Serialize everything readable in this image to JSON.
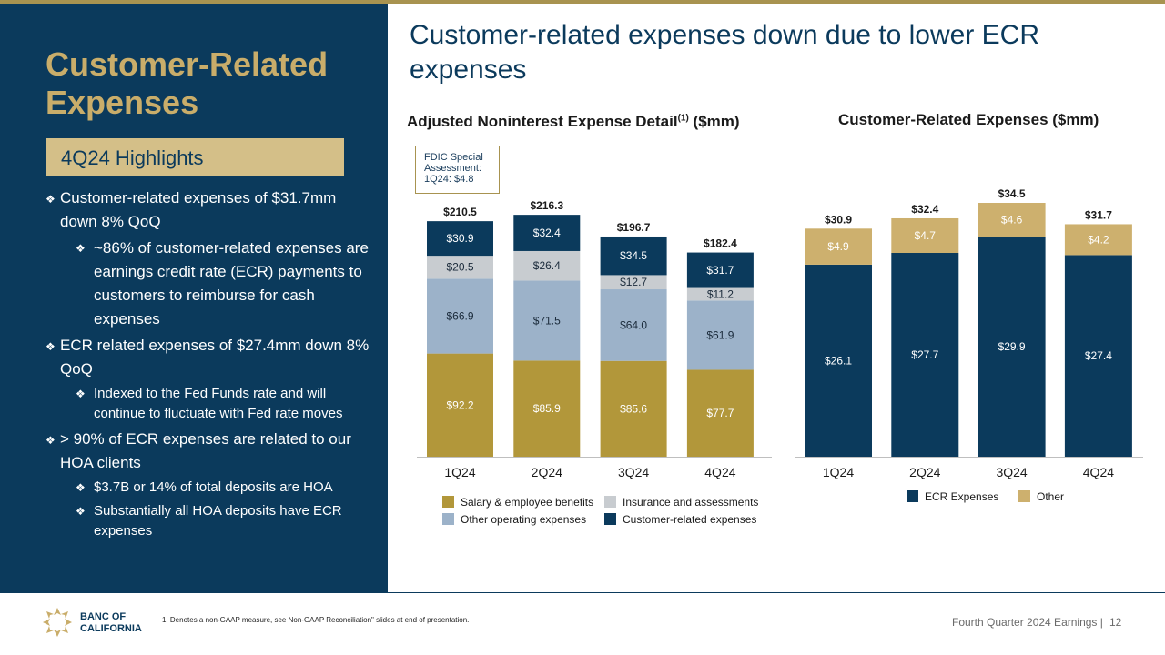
{
  "left": {
    "title": "Customer-Related Expenses",
    "highlight_label": "4Q24 Highlights",
    "bullets": [
      {
        "level": 1,
        "text": "Customer-related expenses of $31.7mm down 8% QoQ"
      },
      {
        "level": 2,
        "text": "~86% of customer-related expenses are earnings credit rate (ECR) payments to customers to reimburse for cash expenses"
      },
      {
        "level": 1,
        "text": "ECR related expenses of $27.4mm down 8% QoQ"
      },
      {
        "level": 3,
        "text": "Indexed to the Fed Funds rate and will continue to fluctuate with Fed rate moves"
      },
      {
        "level": 1,
        "text": "> 90% of ECR expenses are related to our HOA clients"
      },
      {
        "level": 3,
        "text": "$3.7B or 14% of total deposits are HOA"
      },
      {
        "level": 3,
        "text": "Substantially all HOA deposits have ECR expenses"
      }
    ]
  },
  "main_title": "Customer-related expenses down due to lower ECR expenses",
  "chart1_title": "Adjusted Noninterest Expense Detail",
  "chart1_title_sup": "(1)",
  "chart1_title_unit": " ($mm)",
  "chart2_title": "Customer-Related Expenses ($mm)",
  "fdic_note": "FDIC Special Assessment: 1Q24: $4.8",
  "colors": {
    "navy": "#0b3a5c",
    "gold": "#b2973a",
    "light_blue": "#9cb2c9",
    "light_gray": "#c8ccd0",
    "tan": "#cdb06e"
  },
  "chart_data": [
    {
      "type": "bar",
      "stacked": true,
      "title": "Adjusted Noninterest Expense Detail(1) ($mm)",
      "categories": [
        "1Q24",
        "2Q24",
        "3Q24",
        "4Q24"
      ],
      "series": [
        {
          "name": "Salary & employee benefits",
          "values": [
            92.2,
            85.9,
            85.6,
            77.7
          ],
          "labels": [
            "$92.2",
            "$85.9",
            "$85.6",
            "$77.7"
          ],
          "color": "#b2973a",
          "label_color": "#ffffff"
        },
        {
          "name": "Other operating expenses",
          "values": [
            66.9,
            71.5,
            64.0,
            61.9
          ],
          "labels": [
            "$66.9",
            "$71.5",
            "$64.0",
            "$61.9"
          ],
          "color": "#9cb2c9",
          "label_color": "#1a2a3a"
        },
        {
          "name": "Insurance and assessments",
          "values": [
            20.5,
            26.4,
            12.7,
            11.2
          ],
          "labels": [
            "$20.5",
            "$26.4",
            "$12.7",
            "$11.2"
          ],
          "color": "#c8ccd0",
          "label_color": "#1a2a3a"
        },
        {
          "name": "Customer-related expenses",
          "values": [
            30.9,
            32.4,
            34.5,
            31.7
          ],
          "labels": [
            "$30.9",
            "$32.4",
            "$34.5",
            "$31.7"
          ],
          "color": "#0b3a5c",
          "label_color": "#ffffff"
        }
      ],
      "totals": [
        "$210.5",
        "$216.3",
        "$196.7",
        "$182.4"
      ],
      "legend_order": [
        "Salary & employee benefits",
        "Insurance and assessments",
        "Other operating expenses",
        "Customer-related expenses"
      ],
      "ylim": [
        0,
        216.3
      ]
    },
    {
      "type": "bar",
      "stacked": true,
      "title": "Customer-Related Expenses ($mm)",
      "categories": [
        "1Q24",
        "2Q24",
        "3Q24",
        "4Q24"
      ],
      "series": [
        {
          "name": "ECR Expenses",
          "values": [
            26.1,
            27.7,
            29.9,
            27.4
          ],
          "labels": [
            "$26.1",
            "$27.7",
            "$29.9",
            "$27.4"
          ],
          "color": "#0b3a5c",
          "label_color": "#ffffff"
        },
        {
          "name": "Other",
          "values": [
            4.9,
            4.7,
            4.6,
            4.2
          ],
          "labels": [
            "$4.9",
            "$4.7",
            "$4.6",
            "$4.2"
          ],
          "color": "#cdb06e",
          "label_color": "#ffffff"
        }
      ],
      "totals": [
        "$30.9",
        "$32.4",
        "$34.5",
        "$31.7"
      ],
      "legend_order": [
        "ECR Expenses",
        "Other"
      ],
      "ylim": [
        0,
        34.5
      ]
    }
  ],
  "footer": {
    "logo_line1": "BANC OF",
    "logo_line2": "CALIFORNIA",
    "footnote": "1.  Denotes a non-GAAP measure, see Non-GAAP Reconciliation\" slides at end of presentation.",
    "report": "Fourth Quarter 2024 Earnings |",
    "page": "12"
  }
}
